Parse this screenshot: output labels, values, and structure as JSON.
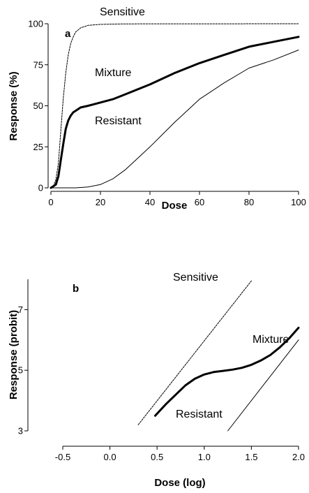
{
  "chart_data": [
    {
      "type": "line",
      "panel_label": "a",
      "xlabel": "Dose",
      "ylabel": "Response (%)",
      "xlim": [
        0,
        100
      ],
      "ylim": [
        0,
        100
      ],
      "xticks": [
        "0",
        "20",
        "40",
        "60",
        "80",
        "100"
      ],
      "yticks": [
        "0",
        "25",
        "50",
        "75",
        "100"
      ],
      "annotations": [
        "Sensitive",
        "Mixture",
        "Resistant"
      ],
      "series": [
        {
          "name": "Sensitive",
          "style": "dashed",
          "x": [
            0,
            1,
            2,
            3,
            4,
            5,
            6,
            7,
            8,
            9,
            10,
            12,
            15,
            20,
            25,
            30,
            100
          ],
          "y": [
            0,
            1,
            5,
            15,
            35,
            55,
            70,
            81,
            88,
            92,
            95,
            97.5,
            99,
            99.6,
            99.8,
            99.9,
            100
          ]
        },
        {
          "name": "Mixture",
          "style": "thick",
          "x": [
            0,
            2,
            3,
            4,
            5,
            6,
            7,
            8,
            9,
            10,
            12,
            15,
            20,
            25,
            30,
            40,
            50,
            60,
            70,
            80,
            90,
            100
          ],
          "y": [
            0,
            2,
            7,
            17,
            27,
            36,
            41,
            44,
            46,
            47,
            49,
            50,
            52,
            54,
            57,
            63,
            70,
            76,
            81,
            86,
            89,
            92
          ]
        },
        {
          "name": "Resistant",
          "style": "thin",
          "x": [
            0,
            5,
            10,
            15,
            20,
            25,
            30,
            35,
            40,
            50,
            60,
            70,
            80,
            90,
            100
          ],
          "y": [
            0,
            0,
            0,
            0.5,
            2,
            5.5,
            11,
            18,
            25,
            40,
            54,
            64,
            73,
            78,
            84
          ]
        }
      ]
    },
    {
      "type": "line",
      "panel_label": "b",
      "xlabel": "Dose (log)",
      "ylabel": "Response (probit)",
      "xlim": [
        -0.5,
        2.0
      ],
      "ylim": [
        3,
        8
      ],
      "xticks": [
        "-0.5",
        "0.0",
        "0.5",
        "1.0",
        "1.5",
        "2.0"
      ],
      "yticks": [
        "3",
        "5",
        "7"
      ],
      "annotations": [
        "Sensitive",
        "Mixture",
        "Resistant"
      ],
      "series": [
        {
          "name": "Sensitive",
          "style": "dashed",
          "x": [
            0.3,
            1.5
          ],
          "y": [
            3.2,
            7.95
          ]
        },
        {
          "name": "Mixture",
          "style": "thick",
          "x": [
            0.48,
            0.6,
            0.7,
            0.8,
            0.9,
            1.0,
            1.1,
            1.2,
            1.3,
            1.4,
            1.5,
            1.6,
            1.7,
            1.8,
            1.9,
            2.0
          ],
          "y": [
            3.5,
            3.9,
            4.2,
            4.5,
            4.72,
            4.86,
            4.94,
            4.98,
            5.02,
            5.08,
            5.18,
            5.32,
            5.5,
            5.75,
            6.05,
            6.4
          ]
        },
        {
          "name": "Resistant",
          "style": "thin",
          "x": [
            1.25,
            2.0
          ],
          "y": [
            3.0,
            6.0
          ]
        }
      ]
    }
  ]
}
